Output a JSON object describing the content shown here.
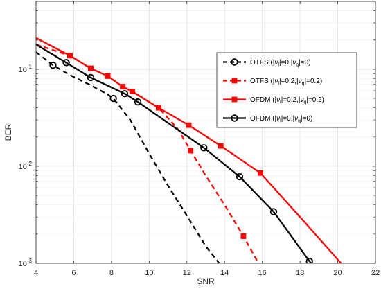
{
  "chart_data": {
    "type": "line",
    "xlabel": "SNR",
    "ylabel": "BER",
    "xlim": [
      4,
      22
    ],
    "ylim": [
      0.001,
      0.5
    ],
    "yscale": "log",
    "grid": true,
    "legend_position": "right",
    "x_ticks": [
      "4",
      "6",
      "8",
      "10",
      "12",
      "14",
      "16",
      "18",
      "20",
      "22"
    ],
    "y_ticks": [
      {
        "base": "10",
        "exp": "-1",
        "value": 0.1
      },
      {
        "base": "10",
        "exp": "-2",
        "value": 0.01
      },
      {
        "base": "10",
        "exp": "-3",
        "value": 0.001
      }
    ],
    "series": [
      {
        "legend_parts": [
          "OTFS (|",
          "ν",
          "l",
          "|=0,|",
          "ν",
          "q",
          "|=0)"
        ],
        "color": "#000000",
        "style": "dashed",
        "marker": "circle",
        "x": [
          4,
          4.9,
          5.8,
          6.8,
          7.8,
          8.1,
          9,
          10,
          11,
          12,
          13,
          14
        ],
        "y": [
          0.15,
          0.11,
          0.087,
          0.07,
          0.055,
          0.05,
          0.03,
          0.0135,
          0.0063,
          0.0031,
          0.0015,
          0.00085
        ],
        "marker_x": [
          4.9,
          8.1
        ],
        "marker_y": [
          0.11,
          0.05
        ]
      },
      {
        "legend_parts": [
          "OTFS (|",
          "ν",
          "l",
          "|=0.2,|",
          "ν",
          "q",
          "|=0.2)"
        ],
        "color": "#ff0000",
        "style": "dashed",
        "marker": "square",
        "x": [
          4,
          5.8,
          6.9,
          7.8,
          8.6,
          9.1,
          10.5,
          11.5,
          12.2,
          13,
          14,
          15,
          16
        ],
        "y": [
          0.18,
          0.138,
          0.102,
          0.085,
          0.066,
          0.059,
          0.04,
          0.0245,
          0.0145,
          0.008,
          0.004,
          0.0019,
          0.00085
        ],
        "marker_x": [
          5.8,
          6.9,
          7.8,
          8.6,
          9.1,
          10.5,
          12.2,
          15
        ],
        "marker_y": [
          0.138,
          0.102,
          0.085,
          0.066,
          0.059,
          0.04,
          0.0145,
          0.0019
        ]
      },
      {
        "legend_parts": [
          "OFDM (|",
          "ν",
          "l",
          "|=0.2,|",
          "ν",
          "q",
          "|=0.2)"
        ],
        "color": "#ff0000",
        "style": "solid",
        "marker": "square",
        "x": [
          4,
          5.8,
          6.9,
          7.8,
          8.6,
          9.1,
          10.5,
          12.1,
          13.8,
          15.9,
          18,
          20.5
        ],
        "y": [
          0.21,
          0.138,
          0.102,
          0.085,
          0.066,
          0.059,
          0.04,
          0.0265,
          0.0162,
          0.0085,
          0.003,
          0.00085
        ],
        "marker_x": [
          5.8,
          6.9,
          7.8,
          8.6,
          9.1,
          10.5,
          12.1,
          13.8,
          15.9
        ],
        "marker_y": [
          0.138,
          0.102,
          0.085,
          0.066,
          0.059,
          0.04,
          0.0265,
          0.0162,
          0.0085
        ]
      },
      {
        "legend_parts": [
          "OFDM (|",
          "ν",
          "l",
          "|=0,|",
          "ν",
          "q",
          "|=0)"
        ],
        "color": "#000000",
        "style": "solid",
        "marker": "circle",
        "x": [
          4,
          5.6,
          6.9,
          8.7,
          9.4,
          12.9,
          14.8,
          16.6,
          18.5,
          18.9
        ],
        "y": [
          0.18,
          0.117,
          0.082,
          0.056,
          0.046,
          0.0155,
          0.0078,
          0.0034,
          0.00105,
          0.00085
        ],
        "marker_x": [
          5.6,
          6.9,
          8.7,
          9.4,
          12.9,
          14.8,
          16.6,
          18.5
        ],
        "marker_y": [
          0.117,
          0.082,
          0.056,
          0.046,
          0.0155,
          0.0078,
          0.0034,
          0.00105
        ]
      }
    ]
  }
}
